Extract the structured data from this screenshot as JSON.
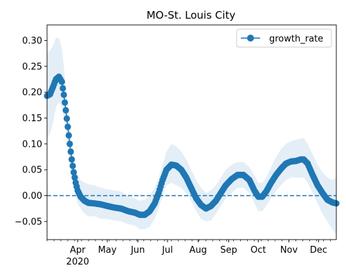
{
  "chart_data": {
    "type": "line",
    "title": "MO-St. Louis City",
    "xlabel": "",
    "ylabel": "",
    "ylim": [
      -0.085,
      0.33
    ],
    "x_axis": {
      "type": "date",
      "range": [
        "2020-03-01",
        "2020-12-19"
      ],
      "major_ticks": [
        {
          "date": "2020-04-01",
          "label": "Apr",
          "sublabel": "2020"
        },
        {
          "date": "2020-05-01",
          "label": "May"
        },
        {
          "date": "2020-06-01",
          "label": "Jun"
        },
        {
          "date": "2020-07-01",
          "label": "Jul"
        },
        {
          "date": "2020-08-01",
          "label": "Aug"
        },
        {
          "date": "2020-09-01",
          "label": "Sep"
        },
        {
          "date": "2020-10-01",
          "label": "Oct"
        },
        {
          "date": "2020-11-01",
          "label": "Nov"
        },
        {
          "date": "2020-12-01",
          "label": "Dec"
        }
      ]
    },
    "y_ticks": [
      -0.05,
      0.0,
      0.05,
      0.1,
      0.15,
      0.2,
      0.25,
      0.3
    ],
    "y_tick_labels": [
      "−0.05",
      "0.00",
      "0.05",
      "0.10",
      "0.15",
      "0.20",
      "0.25",
      "0.30"
    ],
    "reference_line": {
      "y": 0.0,
      "style": "dashed",
      "color": "#1f77b4"
    },
    "legend": {
      "position": "top-right",
      "entries": [
        "growth_rate"
      ]
    },
    "grid": false,
    "series": [
      {
        "name": "growth_rate",
        "color": "#1f77b4",
        "band_color": "#1f77b4",
        "band_opacity": 0.12,
        "points": [
          [
            "2020-03-01",
            0.193,
            0.11,
            0.275
          ],
          [
            "2020-03-04",
            0.196,
            0.12,
            0.28
          ],
          [
            "2020-03-07",
            0.21,
            0.14,
            0.29
          ],
          [
            "2020-03-10",
            0.225,
            0.17,
            0.305
          ],
          [
            "2020-03-13",
            0.23,
            0.18,
            0.305
          ],
          [
            "2020-03-16",
            0.22,
            0.17,
            0.285
          ],
          [
            "2020-03-18",
            0.195,
            0.15,
            0.25
          ],
          [
            "2020-03-20",
            0.165,
            0.12,
            0.21
          ],
          [
            "2020-03-22",
            0.133,
            0.09,
            0.175
          ],
          [
            "2020-03-24",
            0.1,
            0.06,
            0.14
          ],
          [
            "2020-03-26",
            0.07,
            0.035,
            0.105
          ],
          [
            "2020-03-28",
            0.045,
            0.015,
            0.08
          ],
          [
            "2020-03-30",
            0.025,
            0.0,
            0.055
          ],
          [
            "2020-04-01",
            0.01,
            -0.015,
            0.04
          ],
          [
            "2020-04-04",
            -0.002,
            -0.025,
            0.03
          ],
          [
            "2020-04-08",
            -0.01,
            -0.035,
            0.025
          ],
          [
            "2020-04-12",
            -0.014,
            -0.04,
            0.022
          ],
          [
            "2020-04-18",
            -0.015,
            -0.04,
            0.02
          ],
          [
            "2020-04-25",
            -0.017,
            -0.045,
            0.015
          ],
          [
            "2020-05-01",
            -0.02,
            -0.045,
            0.012
          ],
          [
            "2020-05-08",
            -0.023,
            -0.048,
            0.01
          ],
          [
            "2020-05-15",
            -0.025,
            -0.05,
            0.008
          ],
          [
            "2020-05-22",
            -0.03,
            -0.055,
            0.0
          ],
          [
            "2020-05-29",
            -0.033,
            -0.058,
            -0.005
          ],
          [
            "2020-06-03",
            -0.037,
            -0.065,
            -0.01
          ],
          [
            "2020-06-08",
            -0.037,
            -0.065,
            -0.008
          ],
          [
            "2020-06-13",
            -0.03,
            -0.06,
            0.0
          ],
          [
            "2020-06-18",
            -0.015,
            -0.045,
            0.015
          ],
          [
            "2020-06-22",
            0.005,
            -0.025,
            0.035
          ],
          [
            "2020-06-26",
            0.03,
            0.0,
            0.06
          ],
          [
            "2020-06-30",
            0.05,
            0.02,
            0.085
          ],
          [
            "2020-07-05",
            0.06,
            0.025,
            0.1
          ],
          [
            "2020-07-10",
            0.058,
            0.02,
            0.095
          ],
          [
            "2020-07-15",
            0.05,
            0.015,
            0.085
          ],
          [
            "2020-07-20",
            0.035,
            0.005,
            0.07
          ],
          [
            "2020-07-25",
            0.015,
            -0.01,
            0.05
          ],
          [
            "2020-07-30",
            -0.005,
            -0.03,
            0.03
          ],
          [
            "2020-08-04",
            -0.018,
            -0.045,
            0.015
          ],
          [
            "2020-08-09",
            -0.025,
            -0.05,
            0.005
          ],
          [
            "2020-08-14",
            -0.02,
            -0.048,
            0.01
          ],
          [
            "2020-08-19",
            -0.01,
            -0.035,
            0.02
          ],
          [
            "2020-08-24",
            0.005,
            -0.02,
            0.035
          ],
          [
            "2020-08-29",
            0.02,
            -0.005,
            0.05
          ],
          [
            "2020-09-04",
            0.032,
            0.005,
            0.06
          ],
          [
            "2020-09-10",
            0.04,
            0.015,
            0.065
          ],
          [
            "2020-09-16",
            0.04,
            0.015,
            0.065
          ],
          [
            "2020-09-22",
            0.03,
            0.005,
            0.055
          ],
          [
            "2020-09-27",
            0.01,
            -0.015,
            0.04
          ],
          [
            "2020-10-01",
            -0.002,
            -0.03,
            0.025
          ],
          [
            "2020-10-05",
            -0.002,
            -0.03,
            0.025
          ],
          [
            "2020-10-09",
            0.008,
            -0.02,
            0.035
          ],
          [
            "2020-10-14",
            0.025,
            -0.005,
            0.055
          ],
          [
            "2020-10-19",
            0.04,
            0.01,
            0.075
          ],
          [
            "2020-10-24",
            0.052,
            0.02,
            0.09
          ],
          [
            "2020-10-29",
            0.062,
            0.03,
            0.1
          ],
          [
            "2020-11-03",
            0.066,
            0.035,
            0.105
          ],
          [
            "2020-11-08",
            0.067,
            0.035,
            0.108
          ],
          [
            "2020-11-13",
            0.07,
            0.035,
            0.11
          ],
          [
            "2020-11-16",
            0.07,
            0.035,
            0.112
          ],
          [
            "2020-11-20",
            0.062,
            0.025,
            0.1
          ],
          [
            "2020-11-25",
            0.04,
            0.005,
            0.08
          ],
          [
            "2020-11-30",
            0.02,
            -0.015,
            0.06
          ],
          [
            "2020-12-05",
            0.005,
            -0.035,
            0.045
          ],
          [
            "2020-12-10",
            -0.008,
            -0.05,
            0.035
          ],
          [
            "2020-12-15",
            -0.013,
            -0.065,
            0.03
          ],
          [
            "2020-12-19",
            -0.015,
            -0.075,
            0.035
          ]
        ]
      }
    ]
  }
}
